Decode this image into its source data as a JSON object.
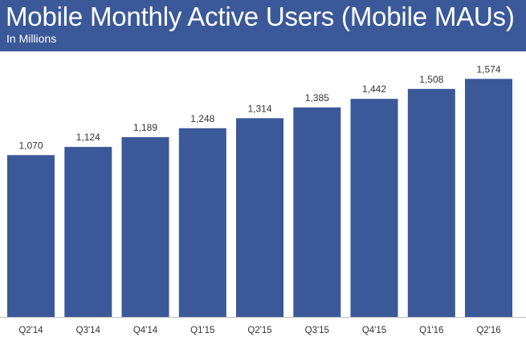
{
  "header": {
    "title": "Mobile Monthly Active Users (Mobile MAUs)",
    "subtitle": "In Millions"
  },
  "colors": {
    "header_bg": "#3b5998",
    "bar": "#3b5998",
    "axis": "#bfbfbf"
  },
  "chart_data": {
    "type": "bar",
    "title": "Mobile Monthly Active Users (Mobile MAUs)",
    "subtitle": "In Millions",
    "categories": [
      "Q2'14",
      "Q3'14",
      "Q4'14",
      "Q1'15",
      "Q2'15",
      "Q3'15",
      "Q4'15",
      "Q1'16",
      "Q2'16"
    ],
    "values": [
      1070,
      1124,
      1189,
      1248,
      1314,
      1385,
      1442,
      1508,
      1574
    ],
    "value_labels": [
      "1,070",
      "1,124",
      "1,189",
      "1,248",
      "1,314",
      "1,385",
      "1,442",
      "1,508",
      "1,574"
    ],
    "xlabel": "",
    "ylabel": "",
    "ylim": [
      0,
      1650
    ],
    "grid": false,
    "legend": "none"
  }
}
